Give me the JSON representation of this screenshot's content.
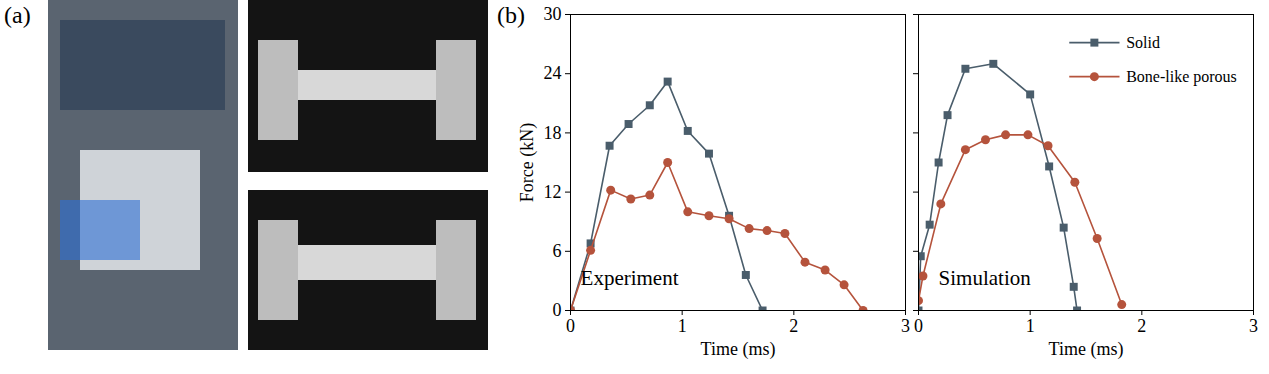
{
  "panel_labels": [
    "(a)",
    "(b)"
  ],
  "chart_data": [
    {
      "type": "line",
      "annotation": "Experiment",
      "xlabel": "Time (ms)",
      "ylabel": "Force (kN)",
      "xlim": [
        0,
        3
      ],
      "xticks": [
        0,
        1,
        2,
        3
      ],
      "ylim": [
        0,
        30
      ],
      "yticks": [
        0,
        6,
        12,
        18,
        24,
        30
      ],
      "series": [
        {
          "name": "Solid",
          "color": "#4a5d6b",
          "marker": "square",
          "x": [
            0,
            0.18,
            0.35,
            0.52,
            0.71,
            0.87,
            1.05,
            1.24,
            1.42,
            1.57,
            1.72
          ],
          "values": [
            0,
            6.8,
            16.7,
            18.9,
            20.8,
            23.2,
            18.2,
            15.9,
            9.6,
            3.6,
            0
          ]
        },
        {
          "name": "Bone-like porous",
          "color": "#b5533c",
          "marker": "circle",
          "x": [
            0,
            0.18,
            0.36,
            0.54,
            0.71,
            0.87,
            1.05,
            1.24,
            1.42,
            1.6,
            1.76,
            1.92,
            2.1,
            2.28,
            2.45,
            2.62
          ],
          "values": [
            0,
            6.1,
            12.2,
            11.3,
            11.7,
            15,
            10,
            9.6,
            9.3,
            8.3,
            8.1,
            7.8,
            4.9,
            4.1,
            2.6,
            0
          ]
        }
      ]
    },
    {
      "type": "line",
      "annotation": "Simulation",
      "xlabel": "Time (ms)",
      "xlim": [
        0,
        3
      ],
      "xticks": [
        0,
        1,
        2,
        3
      ],
      "ylim": [
        0,
        30
      ],
      "yticks": [
        0,
        6,
        12,
        18,
        24,
        30
      ],
      "tick_labels": "x",
      "legend": "top-right",
      "series": [
        {
          "name": "Solid",
          "color": "#4a5d6b",
          "marker": "square",
          "x": [
            0,
            0.02,
            0.1,
            0.18,
            0.26,
            0.42,
            0.67,
            1.0,
            1.17,
            1.3,
            1.39,
            1.42
          ],
          "values": [
            0,
            5.5,
            8.7,
            15,
            19.8,
            24.5,
            25,
            21.9,
            14.6,
            8.4,
            2.4,
            0
          ]
        },
        {
          "name": "Bone-like porous",
          "color": "#b5533c",
          "marker": "circle",
          "x": [
            0,
            0.04,
            0.2,
            0.42,
            0.6,
            0.78,
            0.98,
            1.16,
            1.4,
            1.6,
            1.82
          ],
          "values": [
            1,
            3.5,
            10.8,
            16.3,
            17.3,
            17.8,
            17.8,
            16.7,
            13,
            7.3,
            0.6
          ]
        }
      ]
    }
  ]
}
